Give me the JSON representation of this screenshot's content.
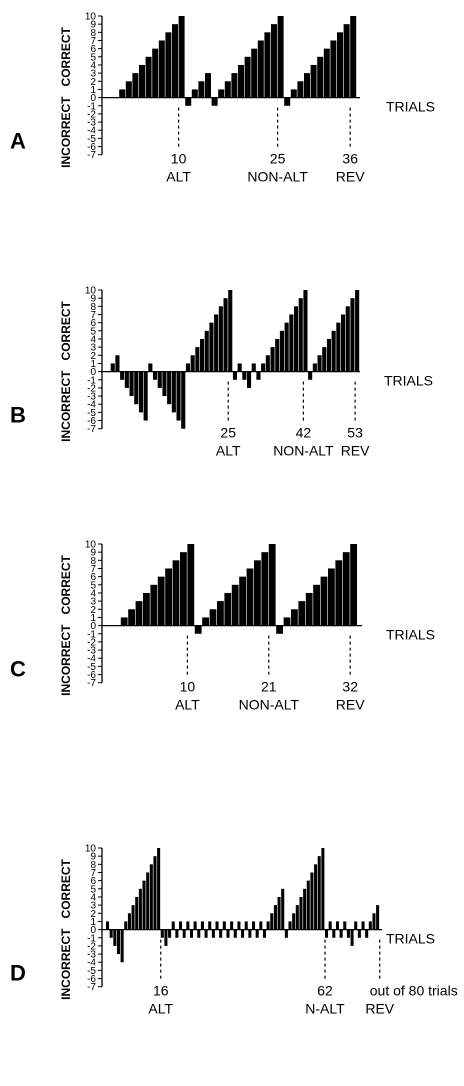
{
  "chart_data": [
    {
      "type": "bar",
      "panel_label": "A",
      "ylabel_pos": "CORRECT",
      "ylabel_neg": "INCORRECT",
      "xlabel": "TRIALS",
      "ylim": [
        -7,
        10
      ],
      "yticks": [
        10,
        9,
        8,
        7,
        6,
        5,
        4,
        3,
        2,
        1,
        0,
        -1,
        -2,
        -3,
        -4,
        -5,
        -6,
        -7
      ],
      "values": [
        0,
        0,
        1,
        2,
        3,
        4,
        5,
        6,
        7,
        8,
        9,
        10,
        -1,
        1,
        2,
        3,
        -1,
        1,
        2,
        3,
        4,
        5,
        6,
        7,
        8,
        9,
        10,
        -1,
        1,
        2,
        3,
        4,
        5,
        6,
        7,
        8,
        9,
        10
      ],
      "markers": [
        {
          "number": "10",
          "label": "ALT",
          "after_bar": 11
        },
        {
          "number": "25",
          "label": "NON-ALT",
          "after_bar": 26
        },
        {
          "number": "36",
          "label": "REV",
          "after_bar": 37
        }
      ]
    },
    {
      "type": "bar",
      "panel_label": "B",
      "ylabel_pos": "CORRECT",
      "ylabel_neg": "INCORRECT",
      "xlabel": "TRIALS",
      "ylim": [
        -7,
        10
      ],
      "yticks": [
        10,
        9,
        8,
        7,
        6,
        5,
        4,
        3,
        2,
        1,
        0,
        -1,
        -2,
        -3,
        -4,
        -5,
        -6,
        -7
      ],
      "values": [
        0,
        1,
        2,
        -1,
        -2,
        -3,
        -4,
        -5,
        -6,
        1,
        -1,
        -2,
        -3,
        -4,
        -5,
        -6,
        -7,
        1,
        2,
        3,
        4,
        5,
        6,
        7,
        8,
        9,
        10,
        -1,
        1,
        -1,
        -2,
        1,
        -1,
        1,
        2,
        3,
        4,
        5,
        6,
        7,
        8,
        9,
        10,
        -1,
        1,
        2,
        3,
        4,
        5,
        6,
        7,
        8,
        9,
        10
      ],
      "markers": [
        {
          "number": "25",
          "label": "ALT",
          "after_bar": 26
        },
        {
          "number": "42",
          "label": "NON-ALT",
          "after_bar": 42
        },
        {
          "number": "53",
          "label": "REV",
          "after_bar": 53
        }
      ]
    },
    {
      "type": "bar",
      "panel_label": "C",
      "ylabel_pos": "CORRECT",
      "ylabel_neg": "INCORRECT",
      "xlabel": "TRIALS",
      "ylim": [
        -7,
        10
      ],
      "yticks": [
        10,
        9,
        8,
        7,
        6,
        5,
        4,
        3,
        2,
        1,
        0,
        -1,
        -2,
        -3,
        -4,
        -5,
        -6,
        -7
      ],
      "values": [
        0,
        0,
        1,
        2,
        3,
        4,
        5,
        6,
        7,
        8,
        9,
        10,
        -1,
        1,
        2,
        3,
        4,
        5,
        6,
        7,
        8,
        9,
        10,
        -1,
        1,
        2,
        3,
        4,
        5,
        6,
        7,
        8,
        9,
        10
      ],
      "markers": [
        {
          "number": "10",
          "label": "ALT",
          "after_bar": 11
        },
        {
          "number": "21",
          "label": "NON-ALT",
          "after_bar": 22
        },
        {
          "number": "32",
          "label": "REV",
          "after_bar": 33
        }
      ]
    },
    {
      "type": "bar",
      "panel_label": "D",
      "ylabel_pos": "CORRECT",
      "ylabel_neg": "INCORRECT",
      "xlabel": "TRIALS",
      "ylim": [
        -7,
        10
      ],
      "yticks": [
        10,
        9,
        8,
        7,
        6,
        5,
        4,
        3,
        2,
        1,
        0,
        -1,
        -2,
        -3,
        -4,
        -5,
        -6,
        -7
      ],
      "values": [
        1,
        -1,
        -2,
        -3,
        -4,
        1,
        2,
        3,
        4,
        5,
        6,
        7,
        8,
        9,
        10,
        -1,
        -2,
        -1,
        1,
        -1,
        1,
        -1,
        1,
        -1,
        1,
        -1,
        1,
        -1,
        1,
        -1,
        1,
        -1,
        1,
        -1,
        1,
        -1,
        1,
        -1,
        1,
        -1,
        1,
        -1,
        1,
        -1,
        1,
        2,
        3,
        4,
        5,
        -1,
        1,
        2,
        3,
        4,
        5,
        6,
        7,
        8,
        9,
        10,
        -1,
        1,
        -1,
        1,
        -1,
        1,
        -1,
        -2,
        1,
        -1,
        1,
        -1,
        1,
        2,
        3
      ],
      "markers": [
        {
          "number": "16",
          "label": "ALT",
          "after_bar": 15
        },
        {
          "number": "62",
          "label": "N-ALT",
          "after_bar": 60
        },
        {
          "number": "out of 80 trials",
          "label": "REV",
          "after_bar": 75
        }
      ]
    }
  ]
}
